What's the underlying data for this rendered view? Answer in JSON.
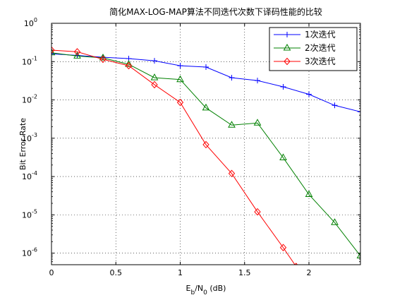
{
  "chart_data": {
    "type": "line",
    "title": "简化MAX-LOG-MAP算法不同迭代次数下译码性能的比较",
    "xlabel_base": "E",
    "xlabel_sub1": "b",
    "xlabel_mid": "/N",
    "xlabel_sub2": "0",
    "xlabel_tail": " (dB)",
    "ylabel": "Bit Error Rate",
    "xlim": [
      0,
      2.4
    ],
    "ylim": [
      5e-07,
      1
    ],
    "yscale": "log",
    "grid": true,
    "legend_position": "top-right",
    "x_ticks": [
      {
        "value": 0,
        "label": "0"
      },
      {
        "value": 0.5,
        "label": "0.5"
      },
      {
        "value": 1,
        "label": "1"
      },
      {
        "value": 1.5,
        "label": "1.5"
      },
      {
        "value": 2,
        "label": "2"
      }
    ],
    "y_ticks": [
      {
        "exp": 0,
        "base": "10",
        "power": "0"
      },
      {
        "exp": -1,
        "base": "10",
        "power": "-1"
      },
      {
        "exp": -2,
        "base": "10",
        "power": "-2"
      },
      {
        "exp": -3,
        "base": "10",
        "power": "-3"
      },
      {
        "exp": -4,
        "base": "10",
        "power": "-4"
      },
      {
        "exp": -5,
        "base": "10",
        "power": "-5"
      },
      {
        "exp": -6,
        "base": "10",
        "power": "-6"
      }
    ],
    "series": [
      {
        "name": "1次迭代",
        "color": "#0000ff",
        "marker": "plus",
        "x": [
          0,
          0.2,
          0.4,
          0.6,
          0.8,
          1.0,
          1.2,
          1.4,
          1.6,
          1.8,
          2.0,
          2.2,
          2.4
        ],
        "y": [
          0.16,
          0.145,
          0.13,
          0.12,
          0.105,
          0.078,
          0.072,
          0.038,
          0.032,
          0.022,
          0.014,
          0.0072,
          0.0049
        ]
      },
      {
        "name": "2次迭代",
        "color": "#008000",
        "marker": "triangle",
        "x": [
          0,
          0.2,
          0.4,
          0.6,
          0.8,
          1.0,
          1.2,
          1.4,
          1.6,
          1.8,
          2.0,
          2.2,
          2.4
        ],
        "y": [
          0.17,
          0.14,
          0.125,
          0.085,
          0.038,
          0.034,
          0.0062,
          0.0022,
          0.0025,
          0.00031,
          3.4e-05,
          6.3e-06,
          8.5e-07
        ]
      },
      {
        "name": "3次迭代",
        "color": "#ff0000",
        "marker": "diamond",
        "x": [
          0,
          0.2,
          0.4,
          0.6,
          0.8,
          1.0,
          1.2,
          1.4,
          1.6,
          1.8,
          1.9
        ],
        "y": [
          0.2,
          0.18,
          0.115,
          0.078,
          0.025,
          0.0086,
          0.00068,
          0.00012,
          1.2e-05,
          1.4e-06,
          4.5e-07
        ]
      }
    ]
  }
}
